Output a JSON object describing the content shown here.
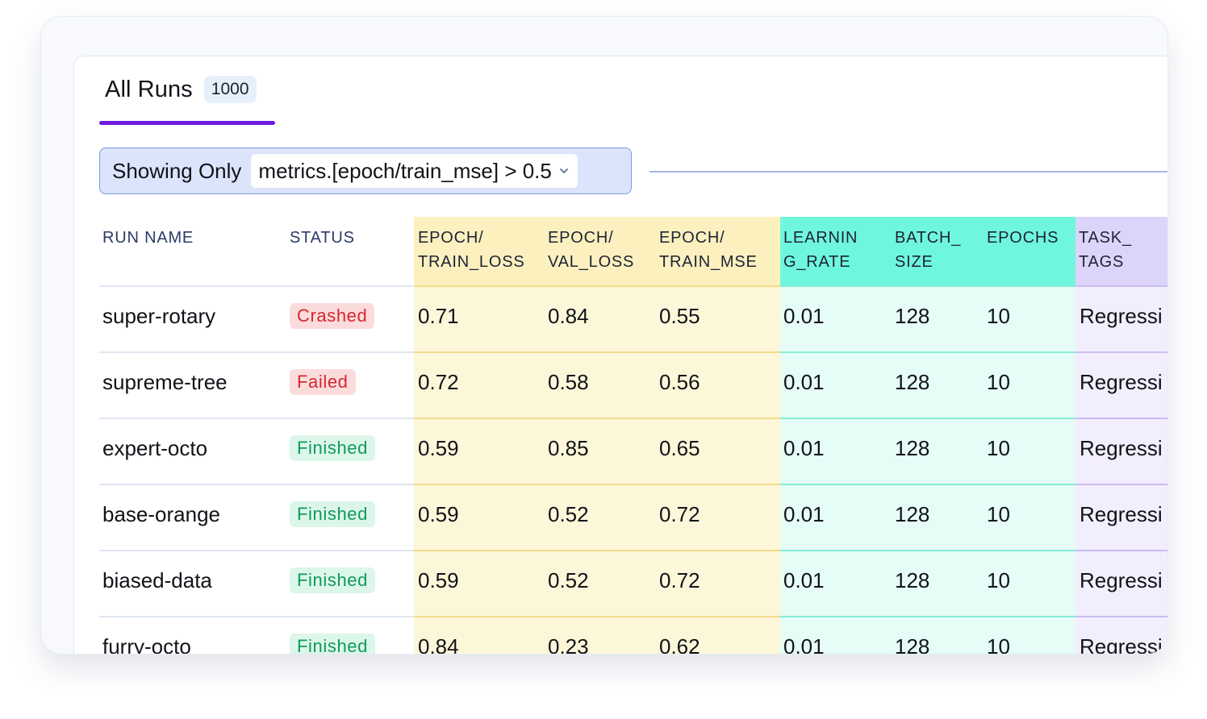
{
  "tab": {
    "title": "All Runs",
    "count": "1000"
  },
  "filter": {
    "label": "Showing Only",
    "value": "metrics.[epoch/train_mse] > 0.5"
  },
  "columns": [
    {
      "label": "RUN NAME",
      "group": "plain"
    },
    {
      "label": "STATUS",
      "group": "plain"
    },
    {
      "label": "EPOCH/\nTRAIN_LOSS",
      "group": "metrics"
    },
    {
      "label": "EPOCH/\nVAL_LOSS",
      "group": "metrics"
    },
    {
      "label": "EPOCH/\nTRAIN_MSE",
      "group": "metrics"
    },
    {
      "label": "LEARNIN\nG_RATE",
      "group": "params"
    },
    {
      "label": "BATCH_\nSIZE",
      "group": "params"
    },
    {
      "label": "EPOCHS",
      "group": "params"
    },
    {
      "label": "TASK_\nTAGS",
      "group": "tags"
    }
  ],
  "rows": [
    {
      "name": "super-rotary",
      "status": "Crashed",
      "train_loss": "0.71",
      "val_loss": "0.84",
      "train_mse": "0.55",
      "learning_rate": "0.01",
      "batch_size": "128",
      "epochs": "10",
      "task_tags": "Regressi"
    },
    {
      "name": "supreme-tree",
      "status": "Failed",
      "train_loss": "0.72",
      "val_loss": "0.58",
      "train_mse": "0.56",
      "learning_rate": "0.01",
      "batch_size": "128",
      "epochs": "10",
      "task_tags": "Regressi"
    },
    {
      "name": "expert-octo",
      "status": "Finished",
      "train_loss": "0.59",
      "val_loss": "0.85",
      "train_mse": "0.65",
      "learning_rate": "0.01",
      "batch_size": "128",
      "epochs": "10",
      "task_tags": "Regressi"
    },
    {
      "name": "base-orange",
      "status": "Finished",
      "train_loss": "0.59",
      "val_loss": "0.52",
      "train_mse": "0.72",
      "learning_rate": "0.01",
      "batch_size": "128",
      "epochs": "10",
      "task_tags": "Regressi"
    },
    {
      "name": "biased-data",
      "status": "Finished",
      "train_loss": "0.59",
      "val_loss": "0.52",
      "train_mse": "0.72",
      "learning_rate": "0.01",
      "batch_size": "128",
      "epochs": "10",
      "task_tags": "Regressi"
    },
    {
      "name": "furry-octo",
      "status": "Finished",
      "train_loss": "0.84",
      "val_loss": "0.23",
      "train_mse": "0.62",
      "learning_rate": "0.01",
      "batch_size": "128",
      "epochs": "10",
      "task_tags": "Regressi"
    }
  ]
}
